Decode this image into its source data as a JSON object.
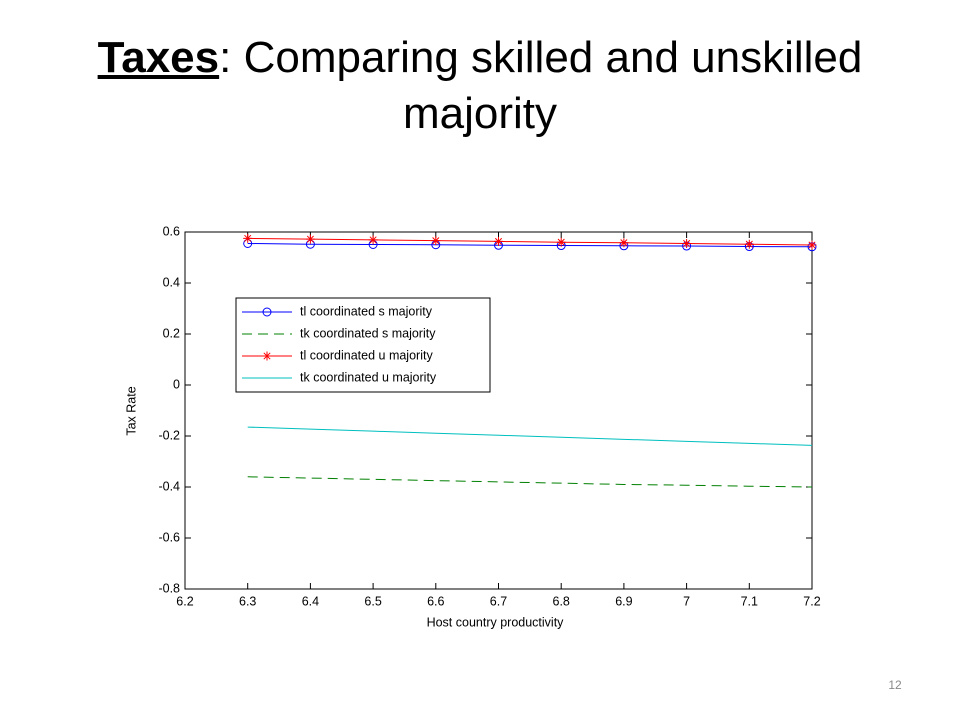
{
  "slide": {
    "title_lead": "Taxes",
    "title_rest": ": Comparing skilled and unskilled majority",
    "page_number": "12"
  },
  "chart_data": {
    "type": "line",
    "x_label": "Host country productivity",
    "y_label": "Tax Rate",
    "x": [
      6.3,
      6.4,
      6.5,
      6.6,
      6.7,
      6.8,
      6.9,
      7,
      7.1,
      7.2
    ],
    "series": [
      {
        "name": "tl coordinated s majority",
        "color": "#0000ff",
        "marker": "o",
        "dash": "solid",
        "values": [
          0.555,
          0.552,
          0.551,
          0.55,
          0.548,
          0.547,
          0.546,
          0.545,
          0.543,
          0.542
        ]
      },
      {
        "name": "tk coordinated s majority",
        "color": "#008000",
        "marker": "none",
        "dash": "dashed",
        "values": [
          -0.36,
          -0.365,
          -0.37,
          -0.375,
          -0.38,
          -0.385,
          -0.39,
          -0.393,
          -0.397,
          -0.4
        ]
      },
      {
        "name": "tl coordinated u majority",
        "color": "#ff0000",
        "marker": "*",
        "dash": "solid",
        "values": [
          0.575,
          0.572,
          0.569,
          0.566,
          0.563,
          0.56,
          0.558,
          0.555,
          0.552,
          0.549
        ]
      },
      {
        "name": "tk coordinated u majority",
        "color": "#00bfbf",
        "marker": "none",
        "dash": "solid",
        "values": [
          -0.165,
          -0.173,
          -0.181,
          -0.189,
          -0.197,
          -0.205,
          -0.213,
          -0.221,
          -0.229,
          -0.237
        ]
      }
    ],
    "xlim": [
      6.2,
      7.2
    ],
    "xticks": [
      6.2,
      6.3,
      6.4,
      6.5,
      6.6,
      6.7,
      6.8,
      6.9,
      7,
      7.1,
      7.2
    ],
    "ylim": [
      -0.8,
      0.6
    ],
    "yticks": [
      -0.8,
      -0.6,
      -0.4,
      -0.2,
      0,
      0.2,
      0.4,
      0.6
    ],
    "grid": false,
    "legend": "upper left"
  }
}
